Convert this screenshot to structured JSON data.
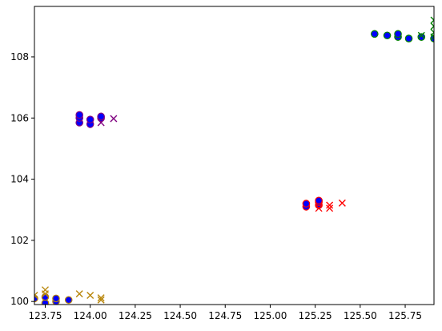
{
  "chart_data": {
    "type": "scatter",
    "title": "",
    "xlabel": "",
    "ylabel": "",
    "xlim": [
      123.69,
      125.91
    ],
    "ylim": [
      99.9,
      109.65
    ],
    "grid": false,
    "legend": "none",
    "x_ticks": [
      123.75,
      124.0,
      124.25,
      124.5,
      124.75,
      125.0,
      125.25,
      125.5,
      125.75
    ],
    "x_tick_labels": [
      "123.75",
      "124.00",
      "124.25",
      "124.50",
      "124.75",
      "125.00",
      "125.25",
      "125.50",
      "125.75"
    ],
    "y_ticks": [
      100,
      102,
      104,
      106,
      108
    ],
    "y_tick_labels": [
      "100",
      "102",
      "104",
      "106",
      "108"
    ],
    "colors": {
      "blue": "#0000ff",
      "purple": "#800080",
      "red": "#ff0000",
      "gold": "#b8860b",
      "green": "#008000",
      "outline_black": "#000000"
    },
    "groups": [
      {
        "group": "cluster-top-left",
        "circle_edge": "#800080",
        "circle_fill": "#0000ff",
        "x_color": "#800080",
        "circles": [
          [
            123.94,
            105.85
          ],
          [
            123.94,
            106.0
          ],
          [
            123.94,
            106.1
          ],
          [
            124.0,
            105.8
          ],
          [
            124.0,
            105.95
          ],
          [
            124.06,
            106.0
          ],
          [
            124.06,
            106.05
          ]
        ],
        "crosses": [
          [
            124.06,
            105.85
          ],
          [
            124.13,
            105.98
          ]
        ]
      },
      {
        "group": "cluster-middle-right",
        "circle_edge": "#ff0000",
        "circle_fill": "#0000ff",
        "x_color": "#ff0000",
        "circles": [
          [
            125.2,
            103.1
          ],
          [
            125.2,
            103.2
          ],
          [
            125.27,
            103.15
          ],
          [
            125.27,
            103.25
          ],
          [
            125.27,
            103.3
          ]
        ],
        "crosses": [
          [
            125.27,
            103.05
          ],
          [
            125.33,
            103.05
          ],
          [
            125.33,
            103.15
          ],
          [
            125.4,
            103.22
          ]
        ]
      },
      {
        "group": "cluster-bottom-left",
        "circle_edge": "#b8860b",
        "circle_fill": "#0000ff",
        "x_color": "#b8860b",
        "circles": [
          [
            123.69,
            100.1
          ],
          [
            123.75,
            99.95
          ],
          [
            123.75,
            100.15
          ],
          [
            123.81,
            100.0
          ],
          [
            123.81,
            100.1
          ],
          [
            123.88,
            100.05
          ]
        ],
        "crosses": [
          [
            123.69,
            100.2
          ],
          [
            123.75,
            100.25
          ],
          [
            123.75,
            100.38
          ],
          [
            123.94,
            100.25
          ],
          [
            124.0,
            100.2
          ],
          [
            124.06,
            100.05
          ],
          [
            124.06,
            100.12
          ]
        ]
      },
      {
        "group": "cluster-top-right",
        "circle_edge": "#008000",
        "circle_fill": "#0000ff",
        "x_color": "#008000",
        "circles": [
          [
            125.58,
            108.75
          ],
          [
            125.65,
            108.7
          ],
          [
            125.71,
            108.65
          ],
          [
            125.71,
            108.75
          ],
          [
            125.77,
            108.6
          ],
          [
            125.84,
            108.65
          ],
          [
            125.91,
            108.6
          ]
        ],
        "crosses": [
          [
            125.84,
            108.7
          ],
          [
            125.91,
            108.65
          ],
          [
            125.91,
            108.8
          ],
          [
            125.91,
            109.0
          ],
          [
            125.91,
            109.2
          ]
        ]
      }
    ]
  }
}
